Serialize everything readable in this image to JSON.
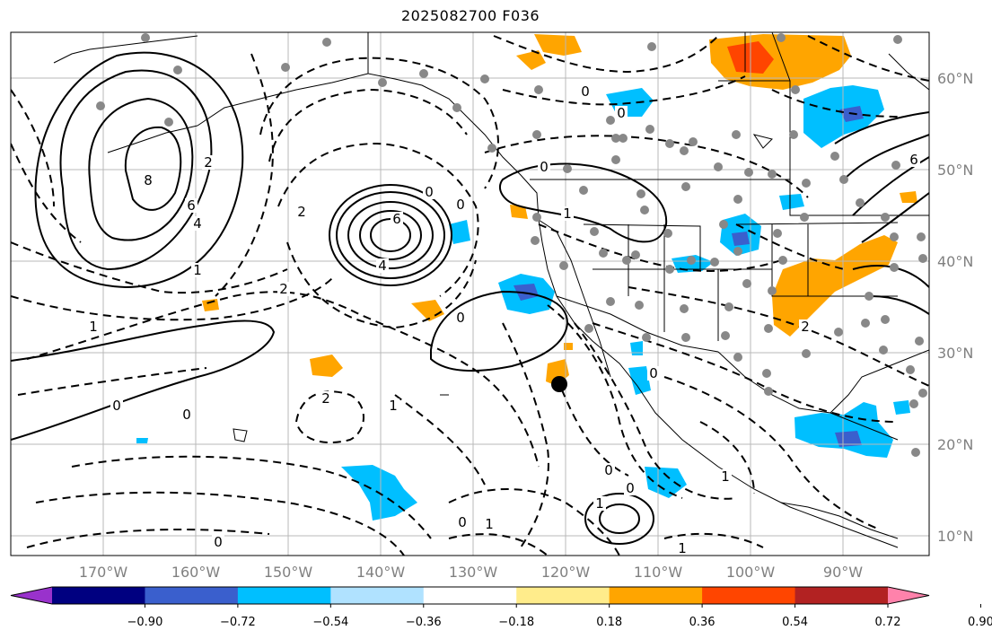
{
  "title": "2025082700 F036",
  "map": {
    "lon_labels": [
      "170°W",
      "160°W",
      "150°W",
      "140°W",
      "130°W",
      "120°W",
      "110°W",
      "100°W",
      "90°W"
    ],
    "lat_labels": [
      "60°N",
      "50°N",
      "40°N",
      "30°N",
      "20°N",
      "10°N"
    ],
    "contour_labels": [
      "8",
      "6",
      "4",
      "2",
      "1",
      "0",
      "6",
      "4",
      "0",
      "1",
      "2",
      "0",
      "2",
      "1",
      "0",
      "0",
      "0",
      "1",
      "0",
      "1",
      "2",
      "0",
      "2",
      "6",
      "0",
      "0",
      "0",
      "1",
      "0",
      "1",
      "0",
      "1"
    ],
    "marker": "storm-center"
  },
  "colorbar": {
    "ticks": [
      "−0.90",
      "−0.72",
      "−0.54",
      "−0.36",
      "−0.18",
      "0.18",
      "0.36",
      "0.54",
      "0.72",
      "0.90"
    ],
    "colors": [
      "#9932cc",
      "#000080",
      "#3a5fcd",
      "#00bfff",
      "#b0e2ff",
      "#ffffff",
      "#ffec8b",
      "#ffa500",
      "#ff4500",
      "#b22222",
      "#ff82ab"
    ]
  }
}
